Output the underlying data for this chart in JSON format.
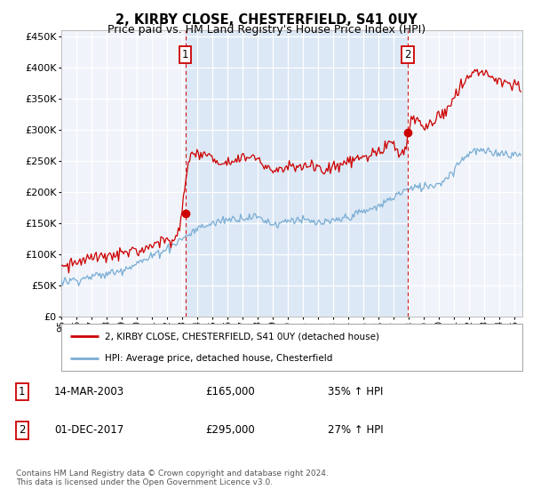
{
  "title": "2, KIRBY CLOSE, CHESTERFIELD, S41 0UY",
  "subtitle": "Price paid vs. HM Land Registry's House Price Index (HPI)",
  "ylim": [
    0,
    460000
  ],
  "yticks": [
    0,
    50000,
    100000,
    150000,
    200000,
    250000,
    300000,
    350000,
    400000,
    450000
  ],
  "xlim_start": 1995.0,
  "xlim_end": 2025.5,
  "plot_bg_color": "#f0f4fa",
  "shaded_bg_color": "#dce8f5",
  "red_line_color": "#cc0000",
  "blue_line_color": "#7aadd4",
  "dashed_line_color": "#cc0000",
  "sale1_x": 2003.21,
  "sale1_y": 165000,
  "sale2_x": 2017.92,
  "sale2_y": 295000,
  "legend_label_red": "2, KIRBY CLOSE, CHESTERFIELD, S41 0UY (detached house)",
  "legend_label_blue": "HPI: Average price, detached house, Chesterfield",
  "sale1_date": "14-MAR-2003",
  "sale1_price": "£165,000",
  "sale1_hpi": "35% ↑ HPI",
  "sale2_date": "01-DEC-2017",
  "sale2_price": "£295,000",
  "sale2_hpi": "27% ↑ HPI",
  "footer": "Contains HM Land Registry data © Crown copyright and database right 2024.\nThis data is licensed under the Open Government Licence v3.0."
}
